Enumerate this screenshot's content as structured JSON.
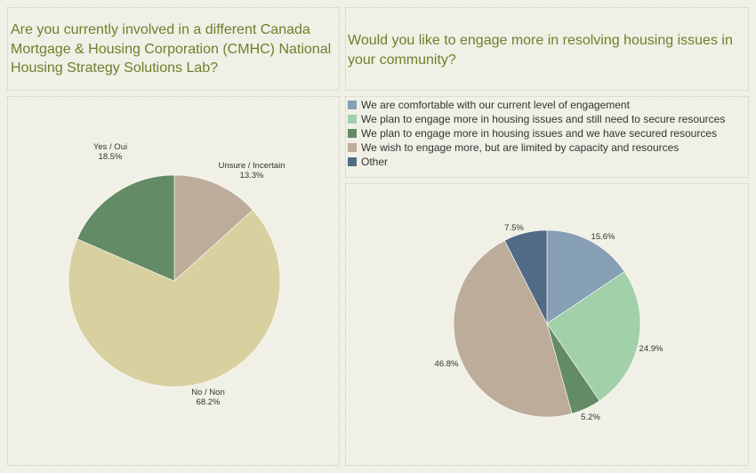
{
  "left_panel": {
    "question_lines": [
      "Are you currently involved in a different Canada",
      "Mortgage & Housing Corporation (CMHC) National",
      "Housing Strategy Solutions Lab?"
    ]
  },
  "right_panel": {
    "question_lines": [
      "Would you like to engage more in resolving housing issues in",
      "your community?"
    ]
  },
  "chart_data": [
    {
      "type": "pie",
      "title": "Are you currently involved in a different Canada Mortgage & Housing Corporation (CMHC) National Housing Strategy Solutions Lab?",
      "slices": [
        {
          "name": "Unsure / Incertain",
          "value": 13.3,
          "label": "13.3%",
          "color": "#bcac99"
        },
        {
          "name": "No / Non",
          "value": 68.2,
          "label": "68.2%",
          "color": "#d8d09f"
        },
        {
          "name": "Yes / Oui",
          "value": 18.5,
          "label": "18.5%",
          "color": "#638b65"
        }
      ]
    },
    {
      "type": "pie",
      "title": "Would you like to engage more in resolving housing issues in your community?",
      "legend_placement": "top",
      "slices": [
        {
          "name": "We are comfortable with our current level of engagement",
          "value": 15.6,
          "label": "15.6%",
          "color": "#869fb5"
        },
        {
          "name": "We plan to engage more in housing issues and still need to secure resources",
          "value": 24.9,
          "label": "24.9%",
          "color": "#a1d0a9"
        },
        {
          "name": "We plan to engage more in housing issues and we have secured resources",
          "value": 5.2,
          "label": "5.2%",
          "color": "#638b65"
        },
        {
          "name": "We wish to engage more, but are limited by capacity and resources",
          "value": 46.8,
          "label": "46.8%",
          "color": "#bcac99"
        },
        {
          "name": "Other",
          "value": 7.5,
          "label": "7.5%",
          "color": "#526b84"
        }
      ]
    }
  ]
}
